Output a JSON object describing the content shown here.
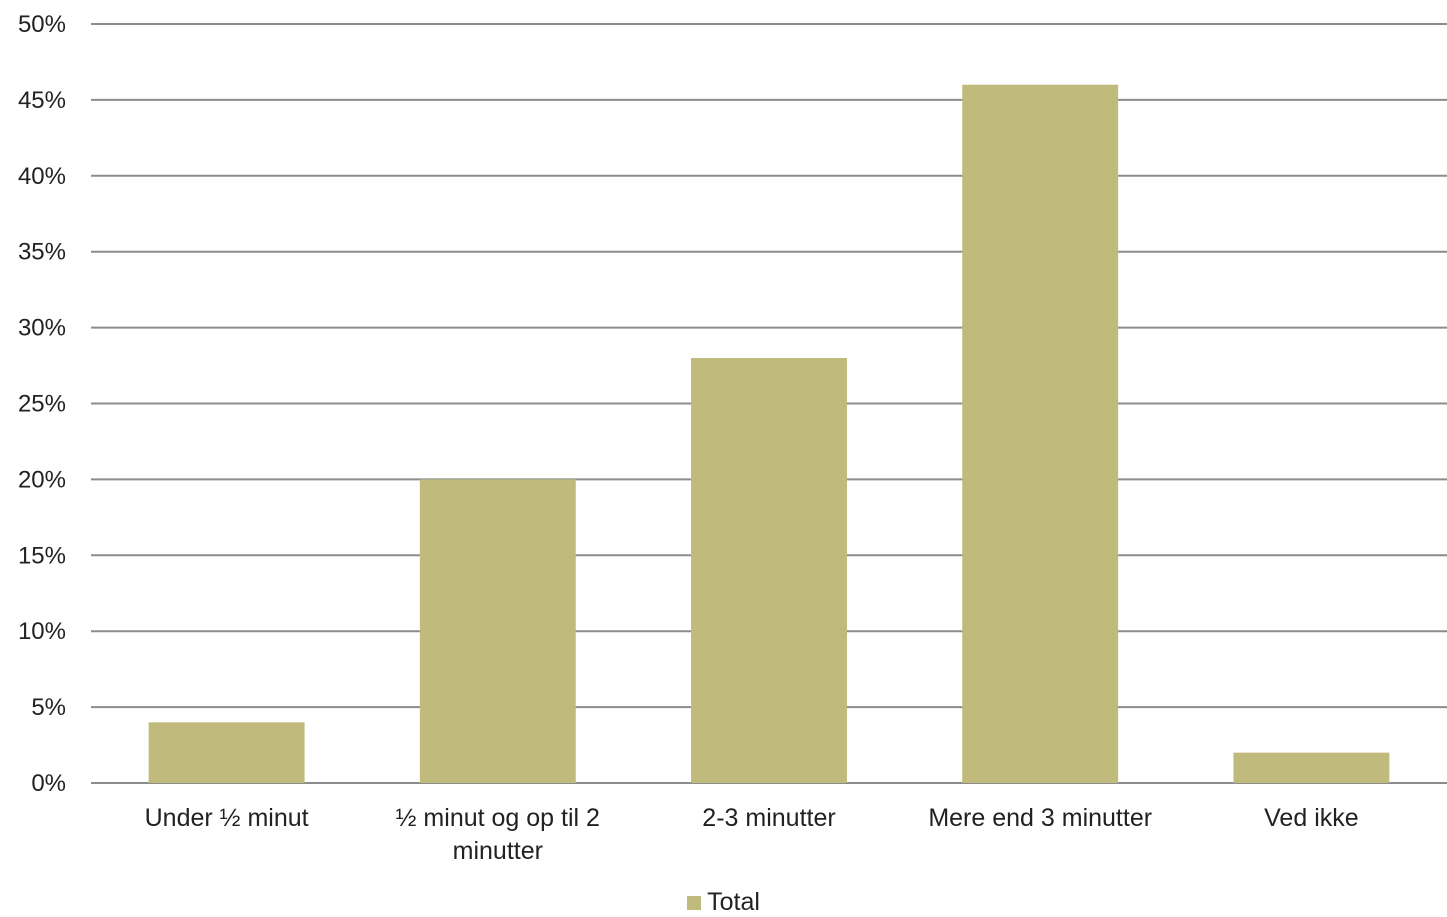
{
  "chart_data": {
    "type": "bar",
    "categories": [
      "Under ½ minut",
      "½ minut og op til 2 minutter",
      "2-3 minutter",
      "Mere end 3 minutter",
      "Ved ikke"
    ],
    "series": [
      {
        "name": "Total",
        "values": [
          4,
          20,
          28,
          46,
          2
        ]
      }
    ],
    "y_ticks": [
      "0%",
      "5%",
      "10%",
      "15%",
      "20%",
      "25%",
      "30%",
      "35%",
      "40%",
      "45%",
      "50%"
    ],
    "ylim": [
      0,
      50
    ],
    "y_unit": "%",
    "grid": true,
    "legend_position": "bottom-center",
    "colors": {
      "bar": "#c0bb7c",
      "grid": "#8c8c8c",
      "text": "#222222"
    }
  }
}
